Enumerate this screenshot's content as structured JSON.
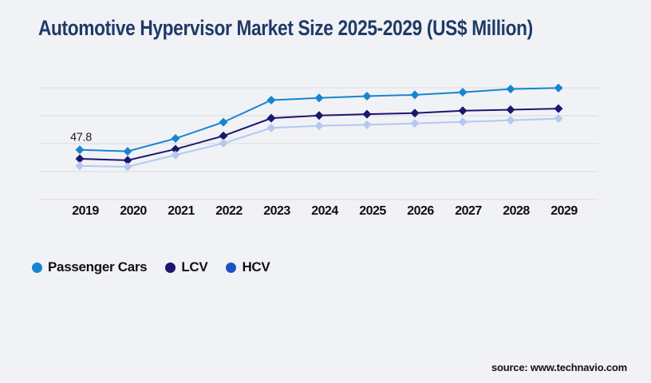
{
  "title": "Automotive Hypervisor Market Size 2025-2029 (US$ Million)",
  "source_text": "source: www.technavio.com",
  "colors": {
    "background": "#f1f2f6",
    "title_text": "#1f3a67",
    "gridline": "#d8d9dc",
    "tick_text": "#0d0d0d",
    "annotation_text": "#222222",
    "passenger_cars": "#1585d0",
    "lcv": "#1c166e",
    "hcv_line": "#b3c8f2",
    "hcv_legend_dot": "#1f51c5"
  },
  "chart_data": {
    "type": "line",
    "title": "Automotive Hypervisor Market Size 2025-2029 (US$ Million)",
    "categories": [
      "2019",
      "2020",
      "2021",
      "2022",
      "2023",
      "2024",
      "2025",
      "2026",
      "2027",
      "2028",
      "2029"
    ],
    "series": [
      {
        "name": "Passenger Cars",
        "color": "#1585d0",
        "legend_color": "#1585d0",
        "marker": "diamond",
        "values": [
          47.8,
          46.4,
          58.7,
          74.4,
          95.6,
          97.7,
          99.4,
          100.7,
          103.2,
          106.3,
          107.3
        ]
      },
      {
        "name": "LCV",
        "color": "#1c166e",
        "legend_color": "#1c166e",
        "marker": "diamond",
        "values": [
          39.2,
          37.7,
          48.4,
          61.2,
          78.2,
          80.8,
          82.1,
          83.1,
          85.4,
          86.4,
          87.4
        ]
      },
      {
        "name": "HCV",
        "color": "#b3c8f2",
        "legend_color": "#1f51c5",
        "marker": "diamond",
        "values": [
          32.3,
          31.5,
          42.8,
          54.1,
          68.8,
          70.9,
          71.9,
          73.2,
          74.7,
          76.2,
          77.8
        ]
      }
    ],
    "annotations": [
      {
        "series": "Passenger Cars",
        "category": "2019",
        "text": "47.8"
      }
    ],
    "ylim": [
      0,
      107.5
    ],
    "grid": "horizontal",
    "gridline_count": 5,
    "legend_position": "bottom-left",
    "y_axis_labels_shown": false
  }
}
